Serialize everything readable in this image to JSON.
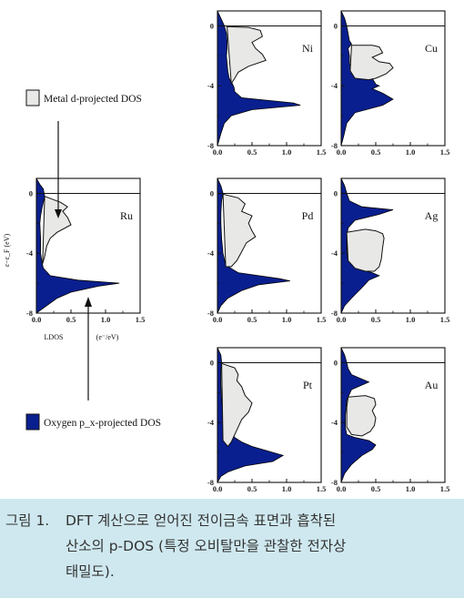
{
  "colors": {
    "oxygen_fill": "#0a1f8f",
    "metal_fill": "#e8e8e6",
    "caption_bg": "#cfe8ef"
  },
  "axes": {
    "y_label": "ε−ε_F (eV)",
    "x_label_left": "LDOS",
    "x_label_right": "(e⁻/eV)",
    "x_ticks": [
      "0.0",
      "0.5",
      "1.0",
      "1.5"
    ],
    "y_ticks": [
      "0",
      "-4",
      "-8"
    ]
  },
  "legend": {
    "metal_label": "Metal d-projected DOS",
    "oxygen_label": "Oxygen p_x-projected DOS"
  },
  "chart_data": {
    "type": "area",
    "xlim": [
      0,
      1.5
    ],
    "ylim": [
      -8,
      1
    ],
    "ylabel": "ε−ε_F (eV)",
    "xlabel": "LDOS (e⁻/eV)",
    "series_names": [
      "Metal d-projected DOS",
      "Oxygen p_x-projected DOS"
    ],
    "panels": [
      {
        "metal": "Ni",
        "oxygen_curve": [
          [
            0,
            1
          ],
          [
            0.05,
            0.5
          ],
          [
            0.1,
            0
          ],
          [
            0.13,
            -0.5
          ],
          [
            0.14,
            -1
          ],
          [
            0.14,
            -1.5
          ],
          [
            0.13,
            -2
          ],
          [
            0.14,
            -2.5
          ],
          [
            0.15,
            -3
          ],
          [
            0.17,
            -3.5
          ],
          [
            0.22,
            -3.9
          ],
          [
            0.24,
            -4.1
          ],
          [
            0.25,
            -4.4
          ],
          [
            0.35,
            -4.8
          ],
          [
            1.1,
            -5.15
          ],
          [
            1.2,
            -5.3
          ],
          [
            0.5,
            -5.6
          ],
          [
            0.2,
            -6
          ],
          [
            0.1,
            -6.5
          ],
          [
            0.05,
            -7.2
          ],
          [
            0,
            -8
          ]
        ],
        "metal_curve": [
          [
            0.14,
            -0.05
          ],
          [
            0.45,
            -0.1
          ],
          [
            0.62,
            -0.3
          ],
          [
            0.65,
            -0.7
          ],
          [
            0.5,
            -1.1
          ],
          [
            0.55,
            -1.5
          ],
          [
            0.65,
            -1.9
          ],
          [
            0.7,
            -2.3
          ],
          [
            0.45,
            -2.7
          ],
          [
            0.3,
            -3.1
          ],
          [
            0.25,
            -3.5
          ],
          [
            0.2,
            -3.85
          ]
        ]
      },
      {
        "metal": "Cu",
        "oxygen_curve": [
          [
            0,
            1
          ],
          [
            0.05,
            0.5
          ],
          [
            0.08,
            0
          ],
          [
            0.1,
            -0.5
          ],
          [
            0.12,
            -1
          ],
          [
            0.15,
            -1.2
          ],
          [
            0.1,
            -1.5
          ],
          [
            0.12,
            -2
          ],
          [
            0.12,
            -2.5
          ],
          [
            0.15,
            -3
          ],
          [
            0.45,
            -3.5
          ],
          [
            0.5,
            -3.9
          ],
          [
            0.55,
            -4
          ],
          [
            0.45,
            -4.2
          ],
          [
            0.6,
            -4.5
          ],
          [
            0.75,
            -4.9
          ],
          [
            0.6,
            -5.3
          ],
          [
            0.2,
            -5.8
          ],
          [
            0.08,
            -6.5
          ],
          [
            0.04,
            -7.3
          ],
          [
            0,
            -8
          ]
        ],
        "metal_curve": [
          [
            0.15,
            -1.3
          ],
          [
            0.45,
            -1.3
          ],
          [
            0.55,
            -1.4
          ],
          [
            0.6,
            -1.8
          ],
          [
            0.45,
            -2.1
          ],
          [
            0.55,
            -2.4
          ],
          [
            0.7,
            -2.5
          ],
          [
            0.75,
            -2.8
          ],
          [
            0.65,
            -3.2
          ],
          [
            0.5,
            -3.5
          ],
          [
            0.4,
            -3.6
          ],
          [
            0.2,
            -3.5
          ],
          [
            0.13,
            -3
          ]
        ]
      },
      {
        "metal": "Ru",
        "oxygen_curve": [
          [
            0,
            1
          ],
          [
            0.05,
            0.6
          ],
          [
            0.1,
            0.3
          ],
          [
            0.12,
            -0.2
          ],
          [
            0.1,
            -0.6
          ],
          [
            0.08,
            -1
          ],
          [
            0.06,
            -1.5
          ],
          [
            0.05,
            -2
          ],
          [
            0.06,
            -3
          ],
          [
            0.06,
            -4
          ],
          [
            0.08,
            -4.6
          ],
          [
            0.1,
            -5
          ],
          [
            0.2,
            -5.5
          ],
          [
            0.6,
            -5.8
          ],
          [
            1.2,
            -6
          ],
          [
            0.9,
            -6.2
          ],
          [
            0.5,
            -6.6
          ],
          [
            0.3,
            -7
          ],
          [
            0.15,
            -7.5
          ],
          [
            0,
            -8
          ]
        ],
        "metal_curve": [
          [
            0.12,
            -0.2
          ],
          [
            0.35,
            -0.6
          ],
          [
            0.45,
            -0.9
          ],
          [
            0.38,
            -1.2
          ],
          [
            0.45,
            -1.6
          ],
          [
            0.5,
            -2.1
          ],
          [
            0.3,
            -2.6
          ],
          [
            0.2,
            -3
          ],
          [
            0.15,
            -3.5
          ],
          [
            0.12,
            -4.2
          ],
          [
            0.09,
            -4.7
          ]
        ]
      },
      {
        "metal": "Pd",
        "oxygen_curve": [
          [
            0,
            1
          ],
          [
            0.05,
            0.5
          ],
          [
            0.08,
            0
          ],
          [
            0.06,
            -0.5
          ],
          [
            0.05,
            -1.3
          ],
          [
            0.05,
            -2
          ],
          [
            0.06,
            -3
          ],
          [
            0.08,
            -4
          ],
          [
            0.12,
            -4.8
          ],
          [
            0.3,
            -5.3
          ],
          [
            0.9,
            -5.7
          ],
          [
            1.05,
            -5.85
          ],
          [
            0.6,
            -6.1
          ],
          [
            0.35,
            -6.5
          ],
          [
            0.15,
            -7
          ],
          [
            0.05,
            -7.5
          ],
          [
            0,
            -8
          ]
        ],
        "metal_curve": [
          [
            0.08,
            -0.05
          ],
          [
            0.3,
            -0.3
          ],
          [
            0.4,
            -0.7
          ],
          [
            0.35,
            -1.2
          ],
          [
            0.5,
            -1.5
          ],
          [
            0.45,
            -2
          ],
          [
            0.5,
            -2.5
          ],
          [
            0.55,
            -2.9
          ],
          [
            0.42,
            -3.3
          ],
          [
            0.35,
            -3.9
          ],
          [
            0.28,
            -4.5
          ],
          [
            0.2,
            -4.9
          ],
          [
            0.12,
            -4.9
          ]
        ]
      },
      {
        "metal": "Ag",
        "oxygen_curve": [
          [
            0,
            1
          ],
          [
            0.05,
            0.5
          ],
          [
            0.08,
            0
          ],
          [
            0.12,
            -0.5
          ],
          [
            0.3,
            -0.9
          ],
          [
            0.75,
            -1.1
          ],
          [
            0.55,
            -1.4
          ],
          [
            0.2,
            -1.8
          ],
          [
            0.1,
            -2.3
          ],
          [
            0.08,
            -3
          ],
          [
            0.08,
            -3.8
          ],
          [
            0.1,
            -4.5
          ],
          [
            0.2,
            -5
          ],
          [
            0.45,
            -5.3
          ],
          [
            0.55,
            -5.5
          ],
          [
            0.4,
            -5.8
          ],
          [
            0.3,
            -6.3
          ],
          [
            0.15,
            -7
          ],
          [
            0.05,
            -7.5
          ],
          [
            0,
            -8
          ]
        ],
        "metal_curve": [
          [
            0.08,
            -2.6
          ],
          [
            0.35,
            -2.4
          ],
          [
            0.5,
            -2.5
          ],
          [
            0.6,
            -2.7
          ],
          [
            0.62,
            -3
          ],
          [
            0.6,
            -3.6
          ],
          [
            0.58,
            -4.4
          ],
          [
            0.55,
            -4.9
          ],
          [
            0.48,
            -5.2
          ],
          [
            0.35,
            -5.2
          ],
          [
            0.2,
            -5
          ],
          [
            0.1,
            -4.5
          ]
        ]
      },
      {
        "metal": "Pt",
        "oxygen_curve": [
          [
            0,
            1
          ],
          [
            0.05,
            0.5
          ],
          [
            0.06,
            0
          ],
          [
            0.05,
            -0.5
          ],
          [
            0.05,
            -1.5
          ],
          [
            0.06,
            -2.5
          ],
          [
            0.08,
            -3.5
          ],
          [
            0.1,
            -4.2
          ],
          [
            0.2,
            -4.6
          ],
          [
            0.25,
            -5
          ],
          [
            0.35,
            -5.3
          ],
          [
            0.5,
            -5.6
          ],
          [
            0.95,
            -6.2
          ],
          [
            0.8,
            -6.6
          ],
          [
            0.4,
            -6.9
          ],
          [
            0.15,
            -7.3
          ],
          [
            0.05,
            -7.6
          ],
          [
            0,
            -8
          ]
        ],
        "metal_curve": [
          [
            0.06,
            -0.05
          ],
          [
            0.25,
            -0.35
          ],
          [
            0.3,
            -0.8
          ],
          [
            0.28,
            -1.2
          ],
          [
            0.35,
            -1.6
          ],
          [
            0.4,
            -2.2
          ],
          [
            0.5,
            -2.7
          ],
          [
            0.45,
            -3.3
          ],
          [
            0.35,
            -3.8
          ],
          [
            0.3,
            -4.3
          ],
          [
            0.25,
            -4.8
          ],
          [
            0.2,
            -5.3
          ],
          [
            0.15,
            -5.6
          ],
          [
            0.08,
            -5.2
          ]
        ]
      },
      {
        "metal": "Au",
        "oxygen_curve": [
          [
            0,
            1
          ],
          [
            0.05,
            0.5
          ],
          [
            0.08,
            0
          ],
          [
            0.1,
            -0.4
          ],
          [
            0.15,
            -0.8
          ],
          [
            0.4,
            -1.3
          ],
          [
            0.15,
            -1.8
          ],
          [
            0.08,
            -2.5
          ],
          [
            0.06,
            -3.5
          ],
          [
            0.06,
            -4.3
          ],
          [
            0.08,
            -4.8
          ],
          [
            0.2,
            -5
          ],
          [
            0.4,
            -5.2
          ],
          [
            0.5,
            -5.5
          ],
          [
            0.45,
            -5.8
          ],
          [
            0.3,
            -6.2
          ],
          [
            0.15,
            -6.8
          ],
          [
            0.05,
            -7.4
          ],
          [
            0,
            -8
          ]
        ],
        "metal_curve": [
          [
            0.1,
            -2.3
          ],
          [
            0.35,
            -2.2
          ],
          [
            0.48,
            -2.4
          ],
          [
            0.5,
            -2.8
          ],
          [
            0.45,
            -3.2
          ],
          [
            0.5,
            -3.7
          ],
          [
            0.48,
            -4.2
          ],
          [
            0.42,
            -4.6
          ],
          [
            0.3,
            -4.9
          ],
          [
            0.15,
            -4.8
          ],
          [
            0.08,
            -4.3
          ],
          [
            0.08,
            -3
          ]
        ]
      }
    ]
  },
  "caption": {
    "number": "그림 1.",
    "line1": "DFT 계산으로 얻어진 전이금속 표면과 흡착된",
    "line2": "산소의 p-DOS (특정 오비탈만을 관찰한 전자상",
    "line3": "태밀도)."
  }
}
